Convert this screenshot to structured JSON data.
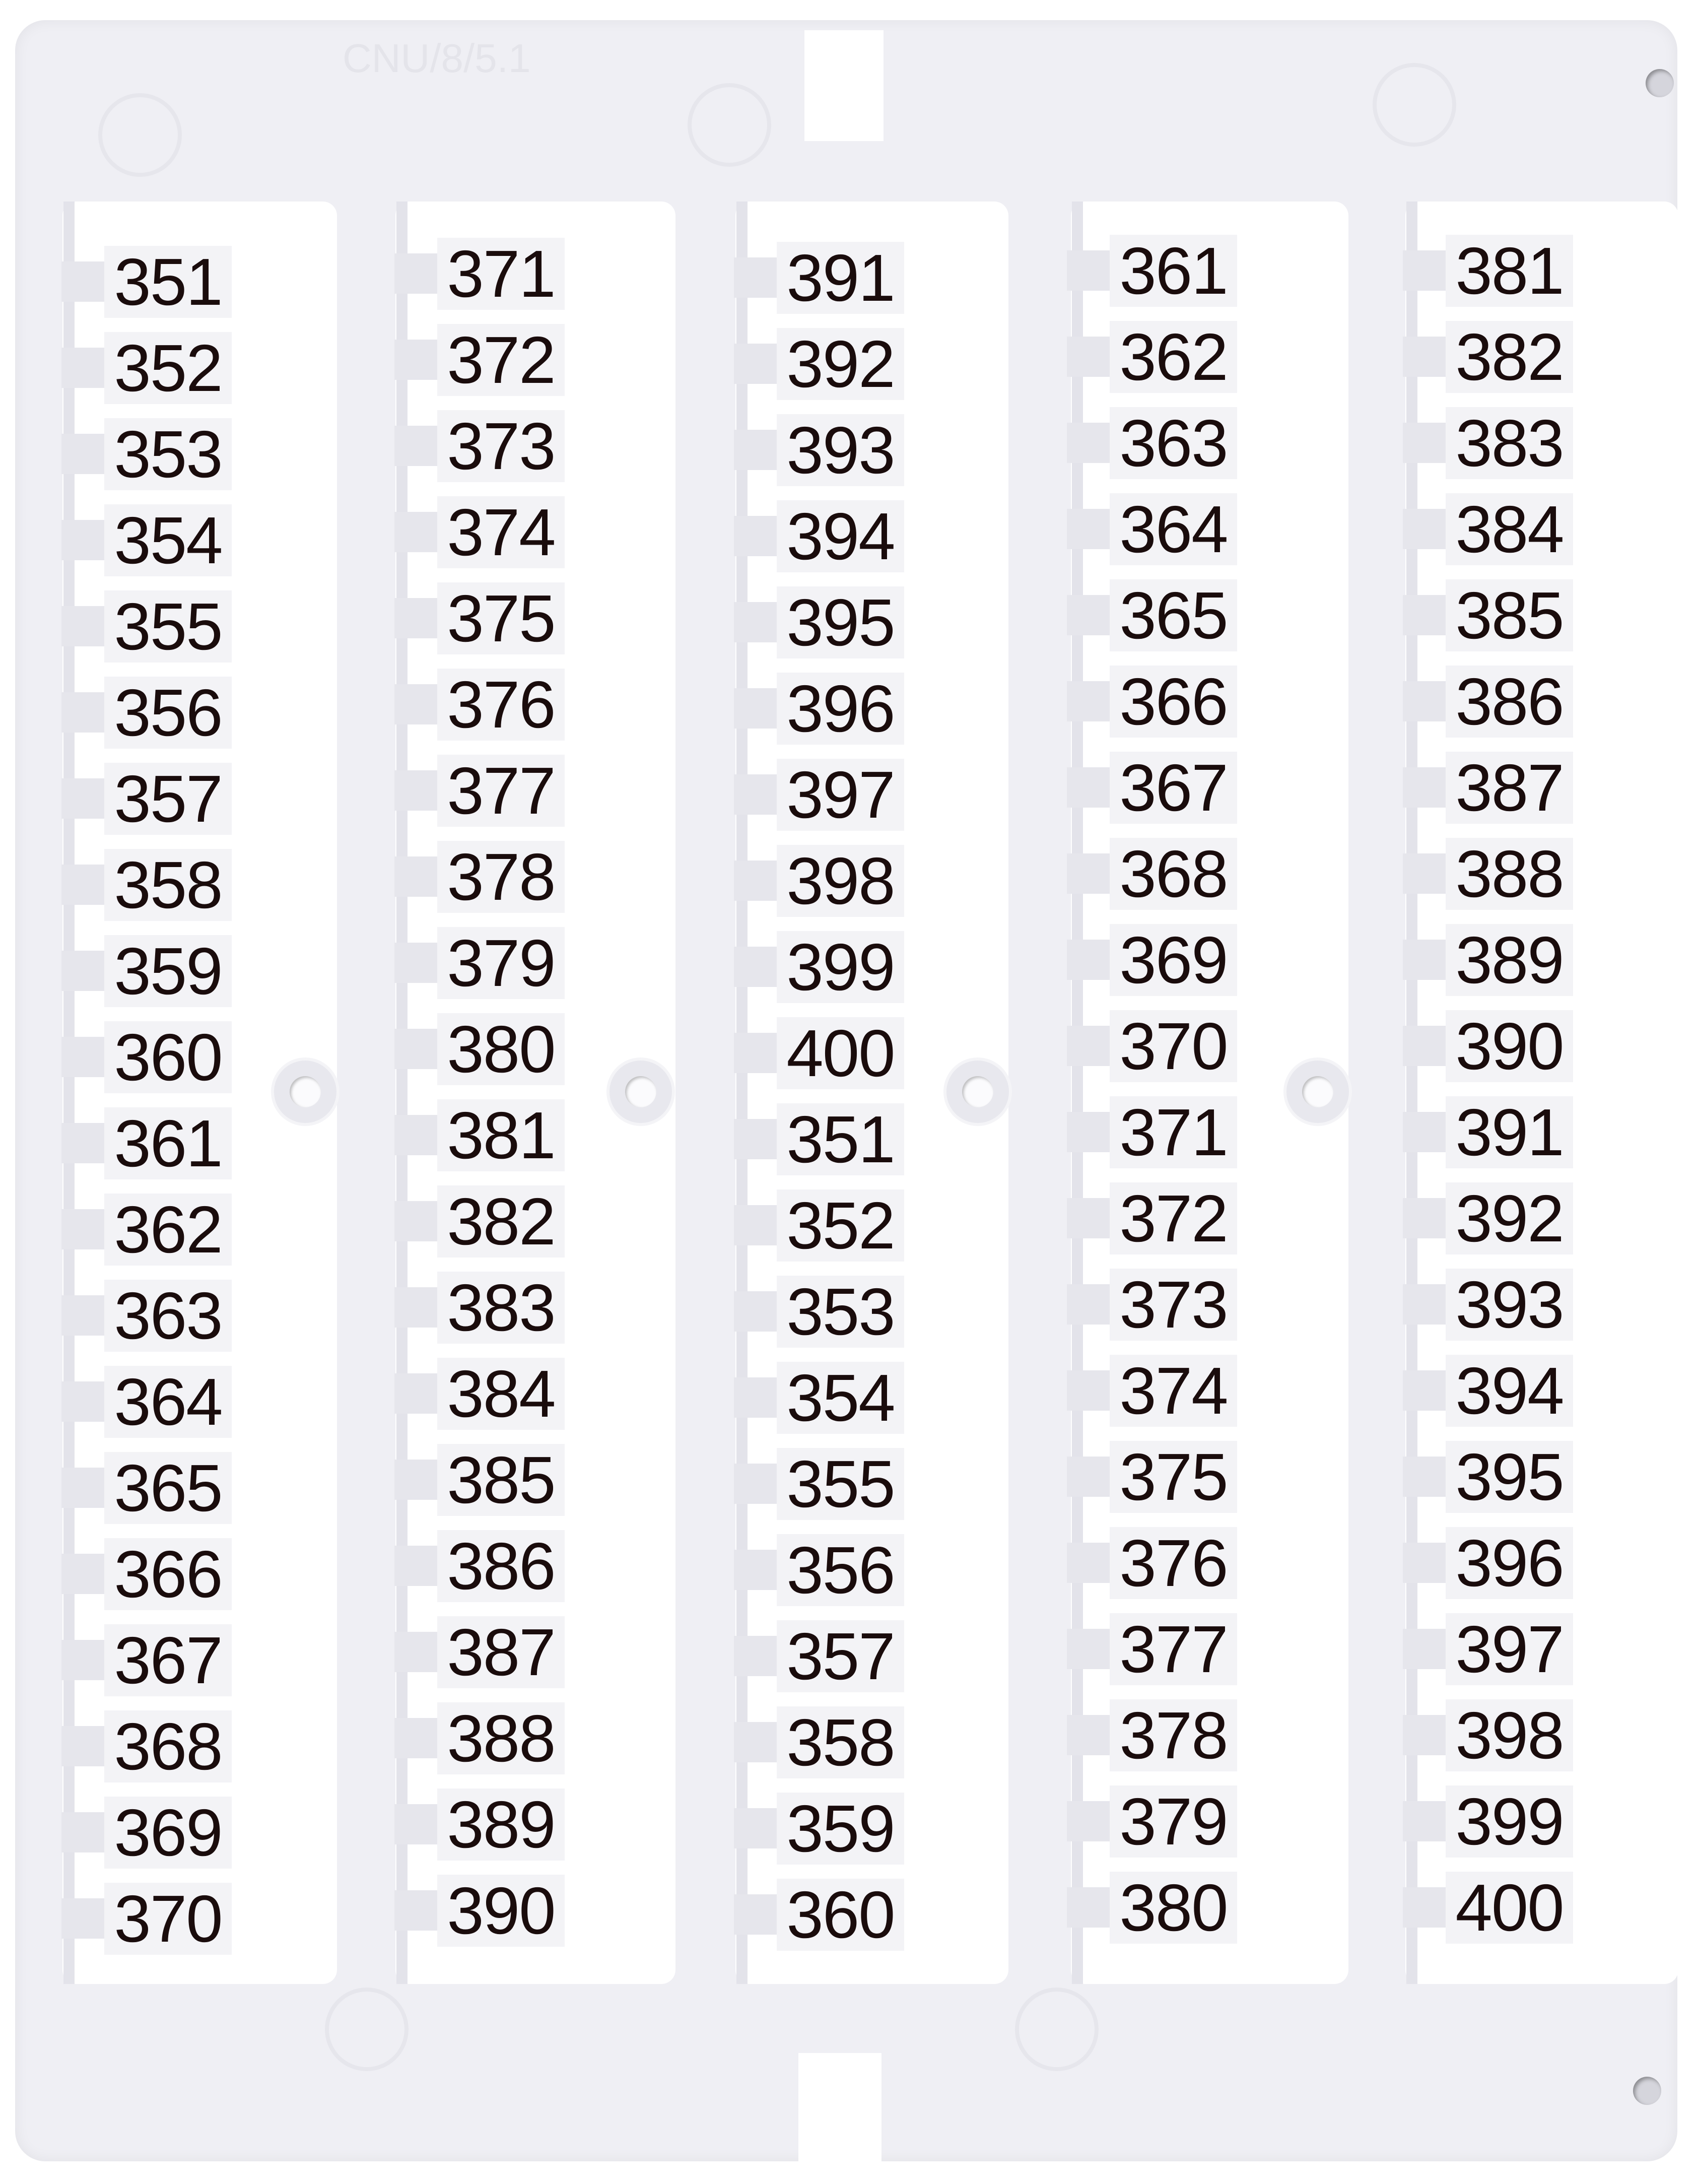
{
  "emboss_text": "CNU/8/5.1",
  "colors": {
    "plate": "#efeff4",
    "text": "#1a0c0c",
    "label_bg": "#f3f3f6"
  },
  "columns": [
    [
      "351",
      "352",
      "353",
      "354",
      "355",
      "356",
      "357",
      "358",
      "359",
      "360",
      "361",
      "362",
      "363",
      "364",
      "365",
      "366",
      "367",
      "368",
      "369",
      "370"
    ],
    [
      "371",
      "372",
      "373",
      "374",
      "375",
      "376",
      "377",
      "378",
      "379",
      "380",
      "381",
      "382",
      "383",
      "384",
      "385",
      "386",
      "387",
      "388",
      "389",
      "390"
    ],
    [
      "391",
      "392",
      "393",
      "394",
      "395",
      "396",
      "397",
      "398",
      "399",
      "400",
      "351",
      "352",
      "353",
      "354",
      "355",
      "356",
      "357",
      "358",
      "359",
      "360"
    ],
    [
      "361",
      "362",
      "363",
      "364",
      "365",
      "366",
      "367",
      "368",
      "369",
      "370",
      "371",
      "372",
      "373",
      "374",
      "375",
      "376",
      "377",
      "378",
      "379",
      "380"
    ],
    [
      "381",
      "382",
      "383",
      "384",
      "385",
      "386",
      "387",
      "388",
      "389",
      "390",
      "391",
      "392",
      "393",
      "394",
      "395",
      "396",
      "397",
      "398",
      "399",
      "400"
    ]
  ]
}
